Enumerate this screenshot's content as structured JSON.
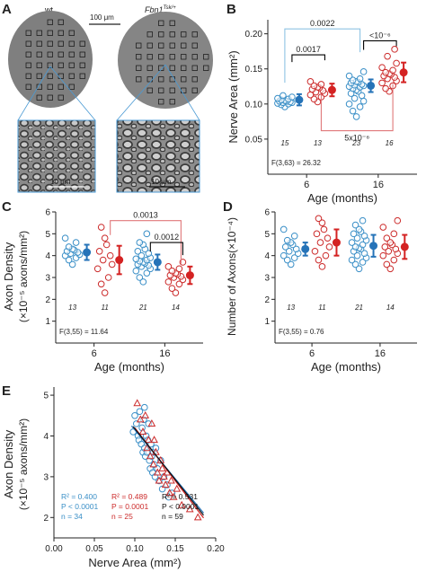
{
  "colors": {
    "wt": "#3a8fc7",
    "mut": "#cc2b2b",
    "mean_wt": "#2573b8",
    "mean_mut": "#d42222",
    "axis": "#222222",
    "annot_blue": "#8ec3e4",
    "annot_red": "#e0787a"
  },
  "panel_labels": [
    "A",
    "B",
    "C",
    "D",
    "E"
  ],
  "panelA": {
    "wt_label": "wt",
    "mut_label": "Fbn1",
    "mut_sup": "Tsk/+",
    "scale_top": "100 μm",
    "scale_bottom_left": "10 μm",
    "scale_bottom_right": "10 μm"
  },
  "chart_data": [
    {
      "panel": "B",
      "type": "scatter",
      "ylabel": "Nerve Area (mm²)",
      "xlabel": "Age (months)",
      "yticks": [
        "0.05",
        "0.10",
        "0.15",
        "0.20"
      ],
      "ylim": [
        0.0,
        0.22
      ],
      "age_labels": [
        "6",
        "16"
      ],
      "n_labels": [
        "15",
        "13",
        "23",
        "16"
      ],
      "stat": "F(3,63) = 26.32",
      "brackets": [
        {
          "label": "0.0017",
          "color": "black"
        },
        {
          "label": "<10⁻⁶",
          "color": "black"
        },
        {
          "label": "0.0022",
          "color": "blue"
        },
        {
          "label": "5x10⁻⁶",
          "color": "red"
        }
      ],
      "groups": [
        {
          "age": "6",
          "genotype": "wt",
          "mean": 0.106,
          "err": 0.008,
          "points": [
            0.096,
            0.099,
            0.1,
            0.101,
            0.102,
            0.102,
            0.103,
            0.104,
            0.104,
            0.105,
            0.106,
            0.107,
            0.108,
            0.11,
            0.112
          ]
        },
        {
          "age": "6",
          "genotype": "Fbn1Tsk/+",
          "mean": 0.12,
          "err": 0.009,
          "points": [
            0.103,
            0.107,
            0.11,
            0.113,
            0.115,
            0.117,
            0.119,
            0.121,
            0.123,
            0.124,
            0.126,
            0.128,
            0.132
          ]
        },
        {
          "age": "16",
          "genotype": "wt",
          "mean": 0.126,
          "err": 0.009,
          "points": [
            0.082,
            0.09,
            0.096,
            0.1,
            0.104,
            0.108,
            0.112,
            0.115,
            0.118,
            0.12,
            0.122,
            0.124,
            0.125,
            0.126,
            0.127,
            0.128,
            0.13,
            0.131,
            0.132,
            0.134,
            0.136,
            0.14,
            0.146
          ]
        },
        {
          "age": "16",
          "genotype": "Fbn1Tsk/+",
          "mean": 0.145,
          "err": 0.014,
          "points": [
            0.118,
            0.122,
            0.126,
            0.13,
            0.133,
            0.136,
            0.138,
            0.14,
            0.142,
            0.143,
            0.145,
            0.148,
            0.152,
            0.158,
            0.168,
            0.178
          ]
        }
      ]
    },
    {
      "panel": "C",
      "type": "scatter",
      "ylabel_line1": "Axon Density",
      "ylabel_line2": "(×10⁻⁵ axons/mm²)",
      "xlabel": "Age (months)",
      "yticks": [
        "1",
        "2",
        "3",
        "4",
        "5",
        "6"
      ],
      "ylim": [
        0,
        6
      ],
      "age_labels": [
        "6",
        "16"
      ],
      "n_labels": [
        "13",
        "11",
        "21",
        "14"
      ],
      "stat": "F(3,55) = 11.64",
      "brackets": [
        {
          "label": "0.0013",
          "color": "red"
        },
        {
          "label": "0.0012",
          "color": "black"
        }
      ],
      "groups": [
        {
          "age": "6",
          "genotype": "wt",
          "mean": 4.15,
          "err": 0.35,
          "points": [
            3.6,
            3.8,
            3.9,
            4.0,
            4.05,
            4.1,
            4.15,
            4.2,
            4.25,
            4.3,
            4.4,
            4.6,
            4.8
          ]
        },
        {
          "age": "6",
          "genotype": "Fbn1Tsk/+",
          "mean": 3.8,
          "err": 0.65,
          "points": [
            2.3,
            2.7,
            3.0,
            3.4,
            3.6,
            3.8,
            4.0,
            4.2,
            4.5,
            4.8,
            5.3
          ]
        },
        {
          "age": "16",
          "genotype": "wt",
          "mean": 3.7,
          "err": 0.35,
          "points": [
            2.8,
            3.0,
            3.2,
            3.3,
            3.4,
            3.5,
            3.55,
            3.6,
            3.65,
            3.7,
            3.75,
            3.8,
            3.85,
            3.9,
            4.0,
            4.1,
            4.2,
            4.3,
            4.5,
            4.6,
            5.0
          ]
        },
        {
          "age": "16",
          "genotype": "Fbn1Tsk/+",
          "mean": 3.1,
          "err": 0.4,
          "points": [
            2.3,
            2.5,
            2.7,
            2.8,
            2.9,
            3.0,
            3.05,
            3.1,
            3.15,
            3.2,
            3.3,
            3.4,
            3.5,
            3.7
          ]
        }
      ]
    },
    {
      "panel": "D",
      "type": "scatter",
      "ylabel": "Number of Axons(×10⁻⁴)",
      "xlabel": "Age (months)",
      "yticks": [
        "1",
        "2",
        "3",
        "4",
        "5",
        "6"
      ],
      "ylim": [
        0,
        6
      ],
      "age_labels": [
        "6",
        "16"
      ],
      "n_labels": [
        "13",
        "11",
        "21",
        "14"
      ],
      "stat": "F(3,55) = 0.76",
      "groups": [
        {
          "age": "6",
          "genotype": "wt",
          "mean": 4.3,
          "err": 0.3,
          "points": [
            3.6,
            3.8,
            3.9,
            4.0,
            4.1,
            4.2,
            4.3,
            4.4,
            4.5,
            4.6,
            4.7,
            4.9,
            5.2
          ]
        },
        {
          "age": "6",
          "genotype": "Fbn1Tsk/+",
          "mean": 4.6,
          "err": 0.6,
          "points": [
            3.5,
            3.8,
            4.0,
            4.2,
            4.4,
            4.6,
            4.8,
            5.0,
            5.2,
            5.5,
            5.7
          ]
        },
        {
          "age": "16",
          "genotype": "wt",
          "mean": 4.45,
          "err": 0.5,
          "points": [
            3.4,
            3.6,
            3.7,
            3.8,
            3.9,
            4.0,
            4.1,
            4.2,
            4.3,
            4.35,
            4.4,
            4.5,
            4.6,
            4.7,
            4.8,
            4.9,
            5.0,
            5.1,
            5.2,
            5.4,
            5.6
          ]
        },
        {
          "age": "16",
          "genotype": "Fbn1Tsk/+",
          "mean": 4.4,
          "err": 0.55,
          "points": [
            3.4,
            3.6,
            3.8,
            4.0,
            4.1,
            4.2,
            4.3,
            4.4,
            4.5,
            4.6,
            4.8,
            5.0,
            5.3,
            5.6
          ]
        }
      ]
    },
    {
      "panel": "E",
      "type": "scatter",
      "xlabel": "Nerve Area (mm²)",
      "ylabel_line1": "Axon Density",
      "ylabel_line2": "(×10⁻⁵ axons/mm²)",
      "xticks": [
        "0.00",
        "0.05",
        "0.10",
        "0.15",
        "0.20"
      ],
      "xlim": [
        0.0,
        0.2
      ],
      "yticks": [
        "2",
        "3",
        "4",
        "5"
      ],
      "ylim": [
        1.5,
        5.2
      ],
      "stats": {
        "wt": [
          "R² = 0.400",
          "P < 0.0001",
          "n = 34"
        ],
        "mut": [
          "R² = 0.489",
          "P = 0.0001",
          "n = 25"
        ],
        "all": [
          "R² = 0.531",
          "P < 0.0001",
          "n = 59"
        ]
      },
      "wt_points": [
        [
          0.098,
          4.1
        ],
        [
          0.1,
          4.5
        ],
        [
          0.102,
          4.3
        ],
        [
          0.104,
          4.0
        ],
        [
          0.105,
          3.9
        ],
        [
          0.106,
          4.6
        ],
        [
          0.108,
          3.8
        ],
        [
          0.109,
          4.2
        ],
        [
          0.11,
          3.6
        ],
        [
          0.111,
          4.4
        ],
        [
          0.112,
          3.7
        ],
        [
          0.113,
          3.5
        ],
        [
          0.114,
          4.0
        ],
        [
          0.115,
          3.6
        ],
        [
          0.116,
          3.9
        ],
        [
          0.117,
          4.3
        ],
        [
          0.118,
          3.4
        ],
        [
          0.119,
          3.2
        ],
        [
          0.12,
          3.8
        ],
        [
          0.121,
          3.5
        ],
        [
          0.122,
          3.1
        ],
        [
          0.123,
          3.6
        ],
        [
          0.124,
          3.3
        ],
        [
          0.125,
          3.0
        ],
        [
          0.126,
          3.7
        ],
        [
          0.128,
          3.2
        ],
        [
          0.13,
          2.9
        ],
        [
          0.132,
          3.4
        ],
        [
          0.134,
          2.7
        ],
        [
          0.136,
          3.0
        ],
        [
          0.14,
          2.8
        ],
        [
          0.142,
          2.5
        ],
        [
          0.146,
          2.6
        ],
        [
          0.112,
          4.7
        ]
      ],
      "mut_points": [
        [
          0.103,
          4.8
        ],
        [
          0.107,
          4.4
        ],
        [
          0.11,
          4.1
        ],
        [
          0.113,
          4.5
        ],
        [
          0.115,
          3.7
        ],
        [
          0.117,
          3.9
        ],
        [
          0.119,
          3.5
        ],
        [
          0.121,
          4.3
        ],
        [
          0.123,
          3.3
        ],
        [
          0.124,
          3.9
        ],
        [
          0.126,
          3.6
        ],
        [
          0.128,
          3.1
        ],
        [
          0.13,
          2.9
        ],
        [
          0.132,
          3.4
        ],
        [
          0.134,
          3.2
        ],
        [
          0.136,
          3.0
        ],
        [
          0.138,
          2.8
        ],
        [
          0.14,
          3.1
        ],
        [
          0.143,
          2.6
        ],
        [
          0.145,
          2.9
        ],
        [
          0.148,
          2.5
        ],
        [
          0.152,
          2.7
        ],
        [
          0.158,
          2.3
        ],
        [
          0.168,
          2.2
        ],
        [
          0.178,
          2.0
        ]
      ],
      "fit_wt": {
        "slope": -24.0,
        "intercept": 6.55,
        "x_range": [
          0.096,
          0.185
        ]
      },
      "fit_mut": {
        "slope": -26.0,
        "intercept": 6.8,
        "x_range": [
          0.1,
          0.185
        ]
      },
      "fit_all": {
        "slope": -25.0,
        "intercept": 6.68,
        "x_range": [
          0.098,
          0.185
        ]
      }
    }
  ]
}
